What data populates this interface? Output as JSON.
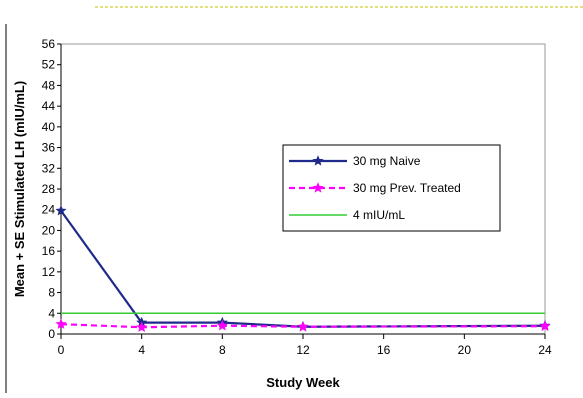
{
  "chart_data": {
    "type": "line",
    "title": "",
    "xlabel": "Study Week",
    "ylabel": "Mean + SE Stimulated LH (mIU/mL)",
    "xlim": [
      0,
      24
    ],
    "ylim": [
      0,
      56
    ],
    "xticks": [
      0,
      4,
      8,
      12,
      16,
      20,
      24
    ],
    "yticks": [
      0,
      4,
      8,
      12,
      16,
      20,
      24,
      28,
      32,
      36,
      40,
      44,
      48,
      52,
      56
    ],
    "grid": false,
    "legend_position": "right",
    "series": [
      {
        "name": "30 mg Naive",
        "x": [
          0,
          4,
          8,
          12,
          24
        ],
        "y": [
          23.8,
          2.2,
          2.2,
          1.4,
          1.6
        ],
        "color": "#1f2a8a",
        "line_style": "solid",
        "marker": "star"
      },
      {
        "name": "30 mg Prev. Treated",
        "x": [
          0,
          4,
          8,
          12,
          24
        ],
        "y": [
          1.9,
          1.3,
          1.6,
          1.4,
          1.5
        ],
        "color": "#ff00ff",
        "line_style": "dashed",
        "marker": "star"
      },
      {
        "name": "4 mIU/mL",
        "x": [
          0,
          24
        ],
        "y": [
          4,
          4
        ],
        "color": "#33cc33",
        "line_style": "solid",
        "marker": "none"
      }
    ]
  }
}
